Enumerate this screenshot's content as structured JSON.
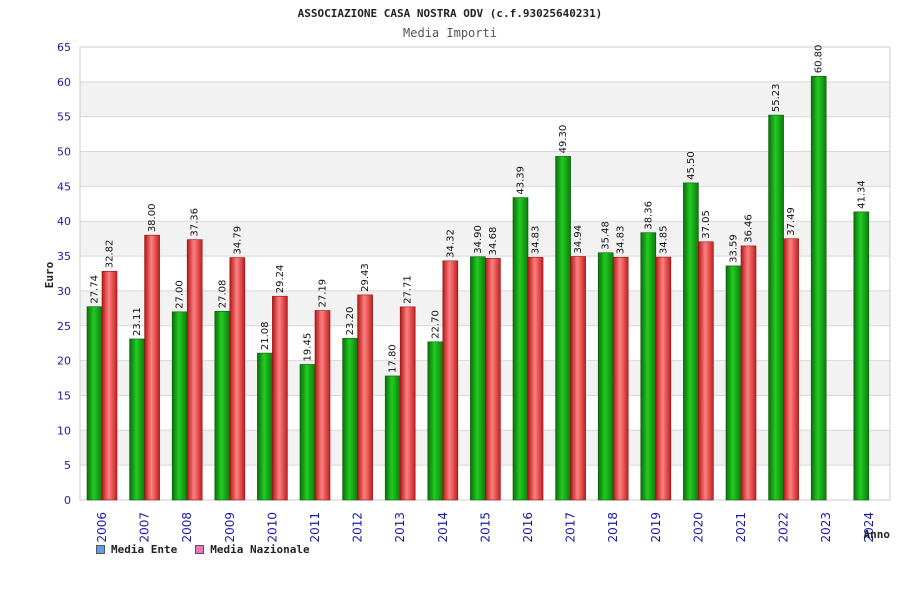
{
  "chart_data": {
    "type": "bar",
    "title": "ASSOCIAZIONE CASA NOSTRA ODV (c.f.93025640231)",
    "subtitle": "Media Importi",
    "ylabel": "Euro",
    "xlabel": "Anno",
    "ylim": [
      0,
      65
    ],
    "yticks": [
      0,
      5,
      10,
      15,
      20,
      25,
      30,
      35,
      40,
      45,
      50,
      55,
      60,
      65
    ],
    "grid": true,
    "legend_position": "bottom-left",
    "categories": [
      "2006",
      "2007",
      "2008",
      "2009",
      "2010",
      "2011",
      "2012",
      "2013",
      "2014",
      "2015",
      "2016",
      "2017",
      "2018",
      "2019",
      "2020",
      "2021",
      "2022",
      "2023",
      "2024"
    ],
    "series": [
      {
        "name": "Media Ente",
        "color": "#1aa81a",
        "legend_color": "#5a9ef0",
        "values": [
          27.74,
          23.11,
          27.0,
          27.08,
          21.08,
          19.45,
          23.2,
          17.8,
          22.7,
          34.9,
          43.39,
          49.3,
          35.48,
          38.36,
          45.5,
          33.59,
          55.23,
          60.8,
          41.34
        ],
        "labels": [
          "27.74",
          "23.11",
          "27.00",
          "27.08",
          "21.08",
          "19.45",
          "23.20",
          "17.80",
          "22.70",
          "34.90",
          "43.39",
          "49.30",
          "35.48",
          "38.36",
          "45.50",
          "33.59",
          "55.23",
          "60.80",
          "41.34"
        ]
      },
      {
        "name": "Media Nazionale",
        "color": "#e03030",
        "legend_color": "#e878b8",
        "values": [
          32.82,
          38.0,
          37.36,
          34.79,
          29.24,
          27.19,
          29.43,
          27.71,
          34.32,
          34.68,
          34.83,
          34.94,
          34.83,
          34.85,
          37.05,
          36.46,
          37.49,
          null,
          null
        ],
        "labels": [
          "32.82",
          "38.00",
          "37.36",
          "34.79",
          "29.24",
          "27.19",
          "29.43",
          "27.71",
          "34.32",
          "34.68",
          "34.83",
          "34.94",
          "34.83",
          "34.85",
          "37.05",
          "36.46",
          "37.49",
          "",
          ""
        ]
      }
    ]
  }
}
